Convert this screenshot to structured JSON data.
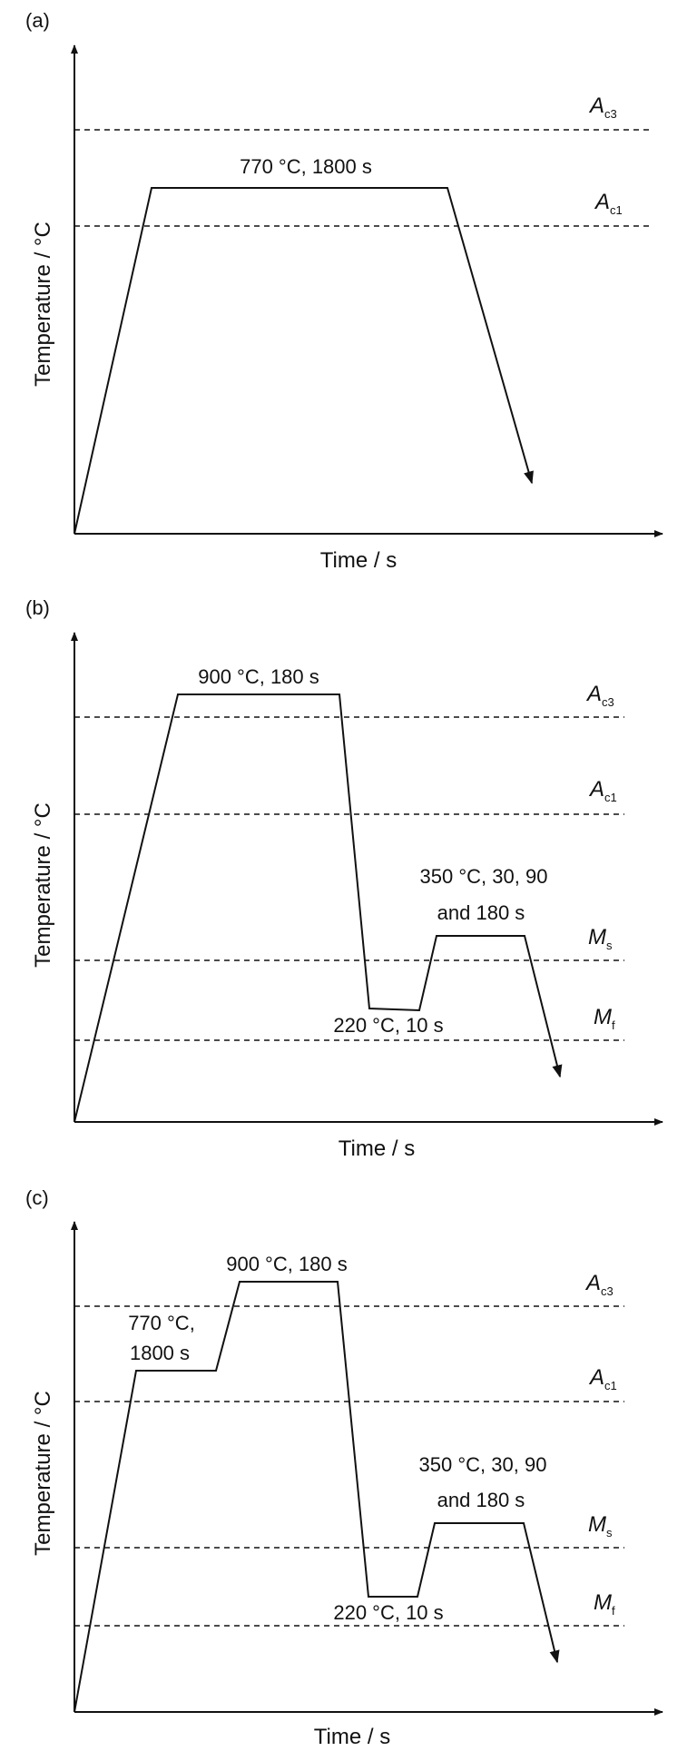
{
  "axes": {
    "ylabel": "Temperature / °C",
    "xlabel": "Time / s"
  },
  "critical_temps": {
    "Ac3": {
      "main": "A",
      "sub": "c3"
    },
    "Ac1": {
      "main": "A",
      "sub": "c1"
    },
    "Ms": {
      "main": "M",
      "sub": "s"
    },
    "Mf": {
      "main": "M",
      "sub": "f"
    }
  },
  "panels": [
    {
      "label": "(a)",
      "annotations": [
        "770 °C, 1800 s"
      ]
    },
    {
      "label": "(b)",
      "annotations": [
        "900 °C, 180 s",
        "350 °C, 30, 90",
        "and 180 s",
        "220 °C, 10 s"
      ]
    },
    {
      "label": "(c)",
      "annotations": [
        "900 °C, 180 s",
        "770 °C,",
        "1800 s",
        "350 °C, 30, 90",
        "and 180 s",
        "220 °C, 10 s"
      ]
    }
  ]
}
